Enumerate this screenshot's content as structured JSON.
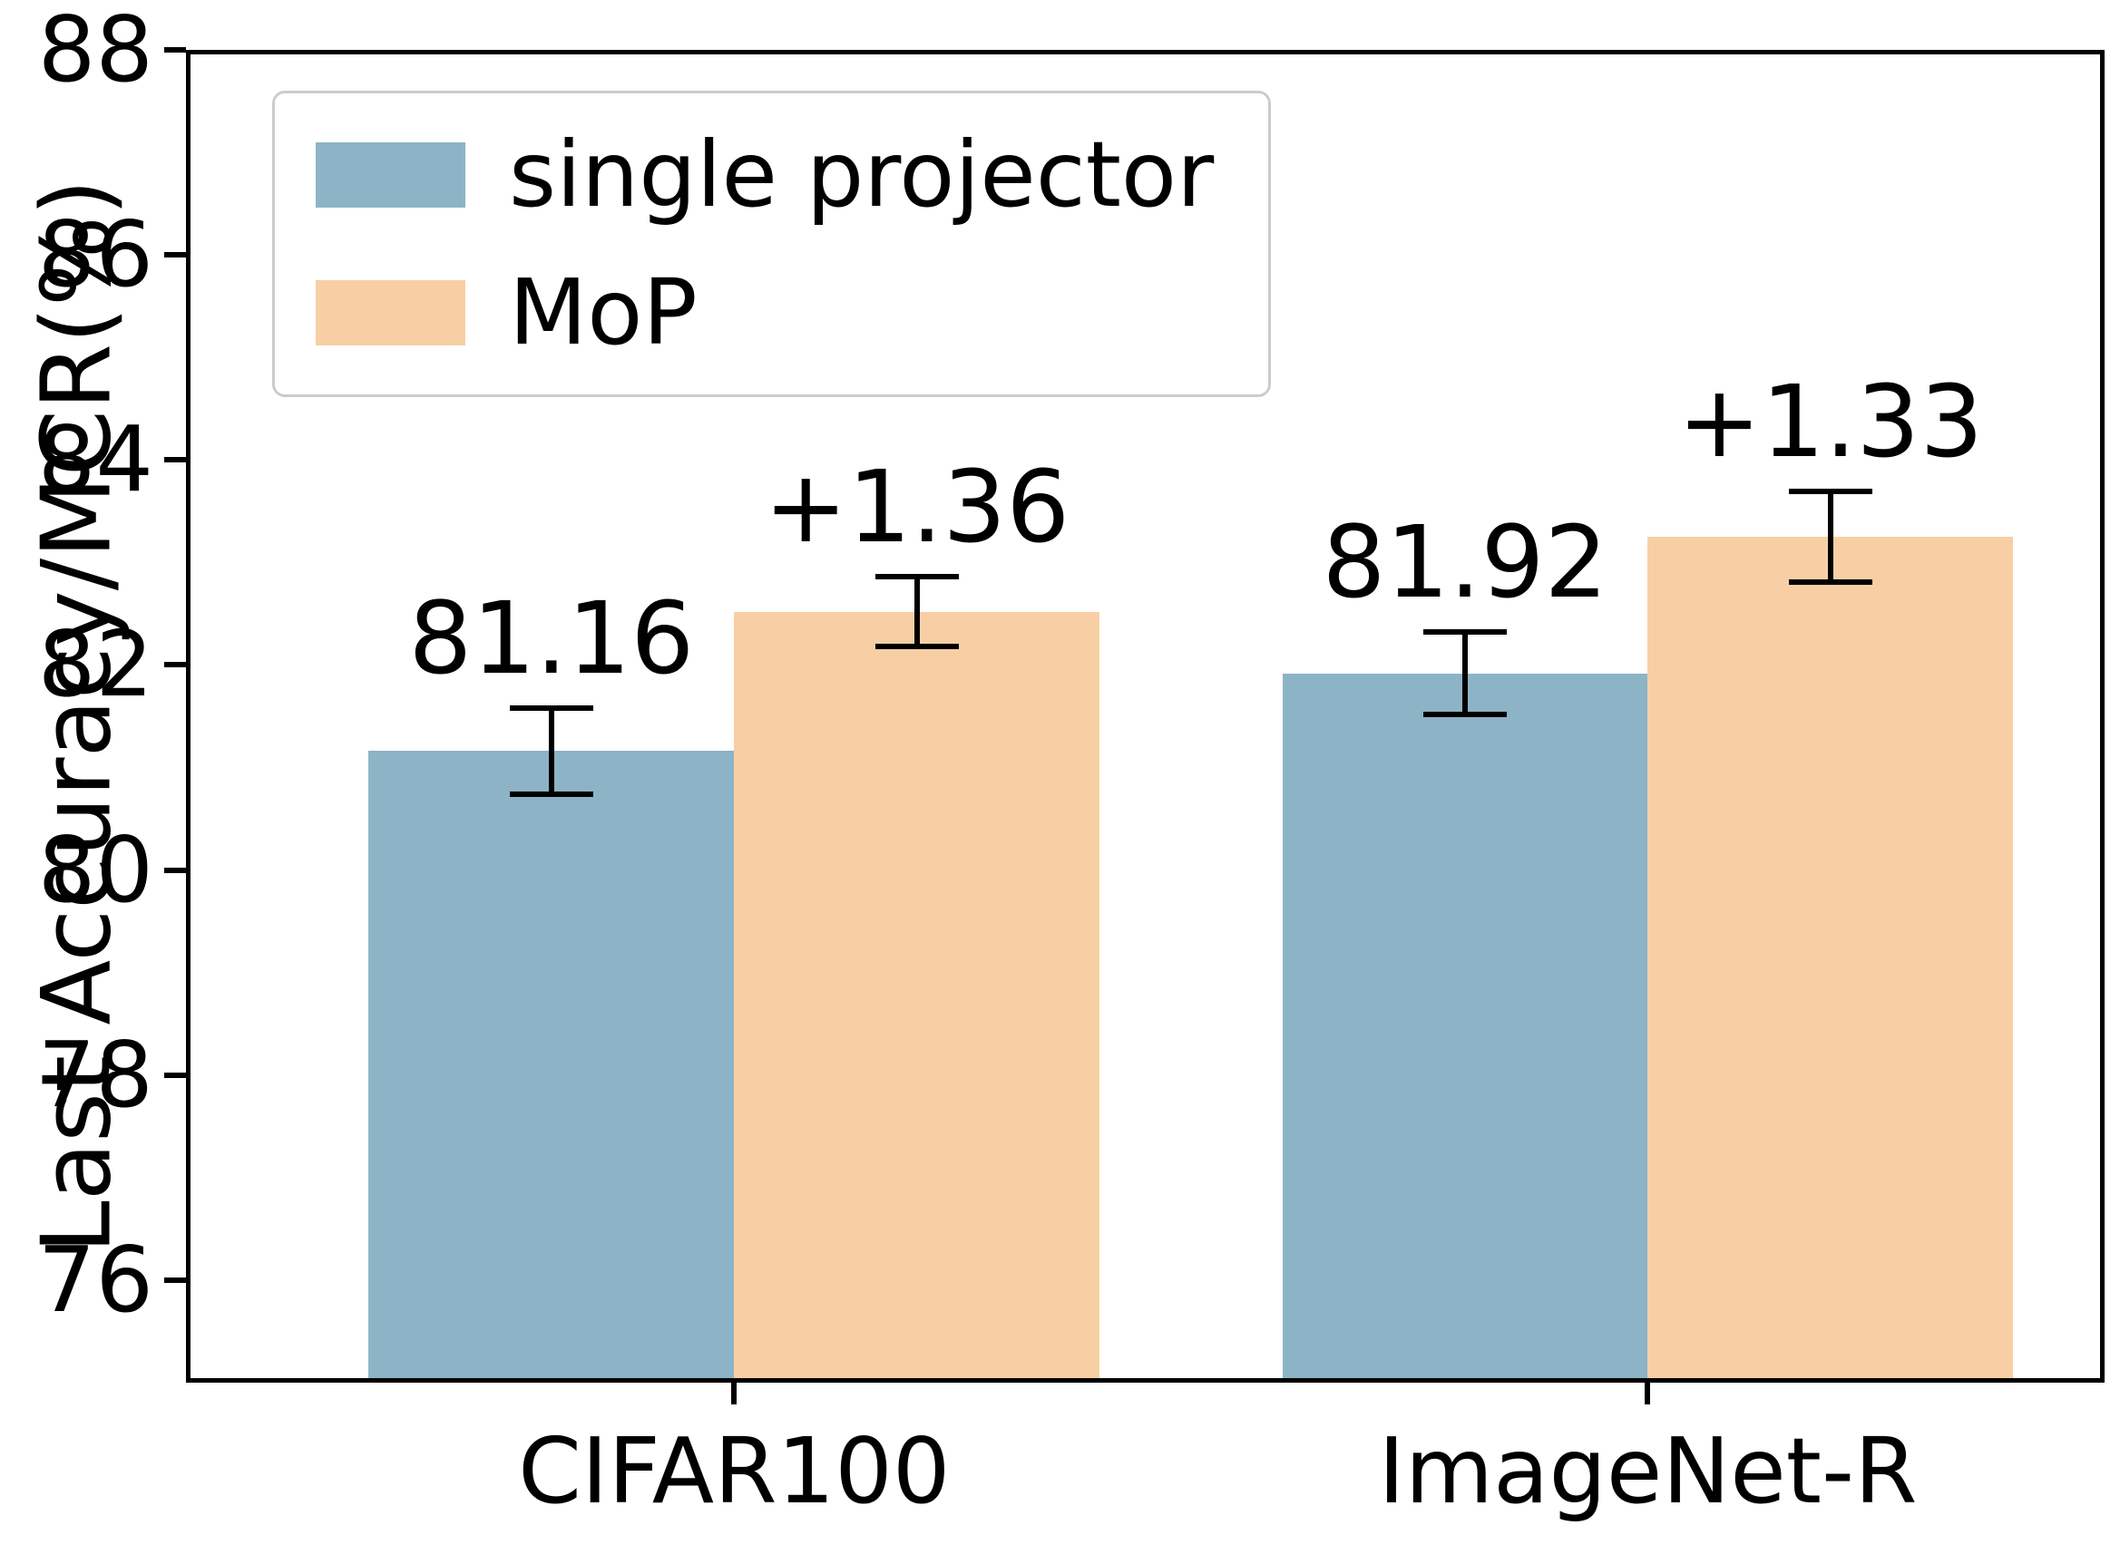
{
  "chart_data": {
    "type": "bar",
    "title": "",
    "xlabel": "",
    "ylabel": "Last Accuracy/MCR(%)",
    "categories": [
      "CIFAR100",
      "ImageNet-R"
    ],
    "series": [
      {
        "name": "single projector",
        "color": "#8db4c6",
        "values": [
          81.16,
          81.92
        ],
        "errors": [
          0.42,
          0.4
        ],
        "bar_labels": [
          "81.16",
          "81.92"
        ]
      },
      {
        "name": "MoP",
        "color": "#f8cfa4",
        "values": [
          82.52,
          83.25
        ],
        "errors": [
          0.34,
          0.44
        ],
        "bar_labels": [
          "+1.36",
          "+1.33"
        ]
      }
    ],
    "ylim": [
      75,
      88
    ],
    "yticks": [
      76,
      78,
      80,
      82,
      84,
      86,
      88
    ],
    "grid": false,
    "legend_position": "upper left",
    "axis_color": "#000000",
    "error_bar_color": "#000000",
    "background_color": "#ffffff"
  }
}
